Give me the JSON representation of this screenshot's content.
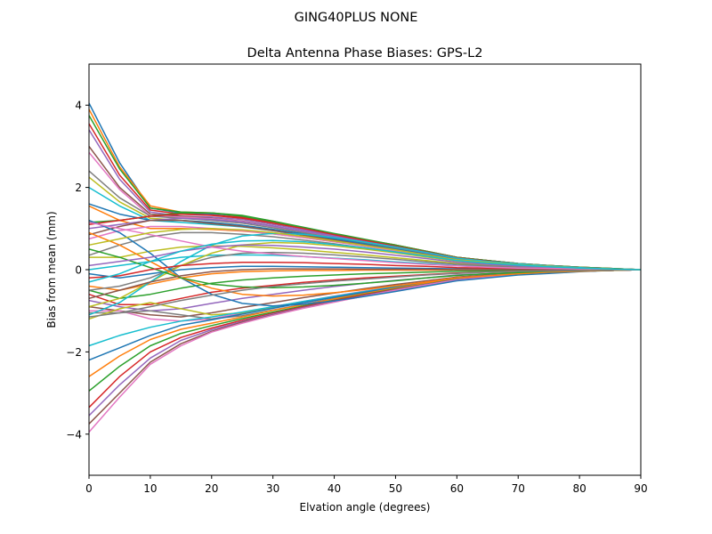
{
  "suptitle": "GING40PLUS      NONE",
  "chart_data": {
    "type": "line",
    "title": "Delta Antenna Phase Biases: GPS-L2",
    "xlabel": "Elvation angle (degrees)",
    "ylabel": "Bias from mean (mm)",
    "xlim": [
      0,
      90
    ],
    "ylim": [
      -5,
      5
    ],
    "xticks": [
      0,
      10,
      20,
      30,
      40,
      50,
      60,
      70,
      80,
      90
    ],
    "yticks": [
      -4,
      -2,
      0,
      2,
      4
    ],
    "grid": false,
    "legend": "none",
    "x": [
      0,
      5,
      10,
      15,
      20,
      25,
      30,
      35,
      40,
      45,
      50,
      55,
      60,
      65,
      70,
      75,
      80,
      85,
      90
    ],
    "series": [
      {
        "values": [
          4.05,
          2.6,
          1.5,
          1.38,
          1.36,
          1.3,
          1.15,
          1.0,
          0.85,
          0.72,
          0.6,
          0.45,
          0.3,
          0.22,
          0.15,
          0.1,
          0.06,
          0.03,
          0.0
        ]
      },
      {
        "values": [
          3.9,
          2.5,
          1.55,
          1.4,
          1.38,
          1.3,
          1.18,
          1.02,
          0.87,
          0.73,
          0.6,
          0.45,
          0.3,
          0.22,
          0.15,
          0.1,
          0.06,
          0.03,
          0.0
        ]
      },
      {
        "values": [
          3.75,
          2.45,
          1.5,
          1.4,
          1.38,
          1.32,
          1.18,
          1.03,
          0.88,
          0.74,
          0.6,
          0.45,
          0.3,
          0.22,
          0.15,
          0.1,
          0.06,
          0.03,
          0.0
        ]
      },
      {
        "values": [
          3.55,
          2.3,
          1.45,
          1.35,
          1.33,
          1.27,
          1.15,
          1.0,
          0.86,
          0.72,
          0.58,
          0.44,
          0.3,
          0.22,
          0.15,
          0.1,
          0.06,
          0.03,
          0.0
        ]
      },
      {
        "values": [
          3.4,
          2.2,
          1.4,
          1.3,
          1.28,
          1.22,
          1.1,
          0.97,
          0.83,
          0.7,
          0.56,
          0.42,
          0.28,
          0.21,
          0.14,
          0.09,
          0.05,
          0.02,
          0.0
        ]
      },
      {
        "values": [
          3.0,
          2.0,
          1.35,
          1.3,
          1.25,
          1.18,
          1.06,
          0.93,
          0.8,
          0.67,
          0.54,
          0.4,
          0.27,
          0.2,
          0.14,
          0.09,
          0.05,
          0.02,
          0.0
        ]
      },
      {
        "values": [
          2.85,
          1.95,
          1.3,
          1.28,
          1.24,
          1.17,
          1.05,
          0.92,
          0.79,
          0.66,
          0.53,
          0.4,
          0.27,
          0.2,
          0.14,
          0.09,
          0.05,
          0.02,
          0.0
        ]
      },
      {
        "values": [
          2.4,
          1.75,
          1.3,
          1.25,
          1.2,
          1.13,
          1.02,
          0.9,
          0.77,
          0.64,
          0.52,
          0.39,
          0.26,
          0.2,
          0.13,
          0.09,
          0.05,
          0.02,
          0.0
        ]
      },
      {
        "values": [
          2.25,
          1.65,
          1.25,
          1.2,
          1.15,
          1.08,
          0.98,
          0.87,
          0.75,
          0.63,
          0.5,
          0.38,
          0.25,
          0.19,
          0.13,
          0.08,
          0.05,
          0.02,
          0.0
        ]
      },
      {
        "values": [
          2.0,
          1.55,
          1.2,
          1.15,
          1.1,
          1.04,
          0.95,
          0.84,
          0.73,
          0.61,
          0.49,
          0.37,
          0.25,
          0.18,
          0.12,
          0.08,
          0.04,
          0.02,
          0.0
        ]
      },
      {
        "values": [
          1.6,
          1.35,
          1.2,
          1.2,
          1.15,
          1.08,
          0.98,
          0.87,
          0.75,
          0.63,
          0.5,
          0.38,
          0.25,
          0.19,
          0.13,
          0.08,
          0.05,
          0.02,
          0.0
        ]
      },
      {
        "values": [
          1.55,
          1.2,
          1.0,
          1.0,
          0.98,
          0.94,
          0.87,
          0.78,
          0.68,
          0.58,
          0.47,
          0.36,
          0.24,
          0.18,
          0.12,
          0.08,
          0.04,
          0.02,
          0.0
        ]
      },
      {
        "values": [
          1.15,
          1.2,
          1.3,
          1.38,
          1.38,
          1.3,
          1.17,
          1.02,
          0.87,
          0.72,
          0.58,
          0.44,
          0.3,
          0.22,
          0.15,
          0.1,
          0.06,
          0.03,
          0.0
        ]
      },
      {
        "values": [
          1.1,
          1.2,
          1.3,
          1.35,
          1.32,
          1.25,
          1.13,
          1.0,
          0.85,
          0.71,
          0.57,
          0.43,
          0.29,
          0.21,
          0.14,
          0.09,
          0.05,
          0.02,
          0.0
        ]
      },
      {
        "values": [
          1.0,
          1.1,
          1.2,
          1.25,
          1.22,
          1.16,
          1.06,
          0.94,
          0.81,
          0.68,
          0.55,
          0.41,
          0.28,
          0.2,
          0.14,
          0.09,
          0.05,
          0.02,
          0.0
        ]
      },
      {
        "values": [
          0.85,
          1.05,
          1.2,
          1.2,
          1.12,
          1.05,
          0.95,
          0.84,
          0.72,
          0.6,
          0.48,
          0.36,
          0.24,
          0.18,
          0.12,
          0.08,
          0.04,
          0.02,
          0.0
        ]
      },
      {
        "values": [
          0.75,
          0.95,
          1.05,
          1.05,
          1.0,
          0.95,
          0.87,
          0.78,
          0.68,
          0.57,
          0.46,
          0.35,
          0.23,
          0.17,
          0.12,
          0.08,
          0.04,
          0.02,
          0.0
        ]
      },
      {
        "values": [
          0.35,
          0.6,
          0.8,
          0.9,
          0.9,
          0.86,
          0.8,
          0.72,
          0.63,
          0.53,
          0.43,
          0.32,
          0.22,
          0.16,
          0.11,
          0.07,
          0.04,
          0.02,
          0.0
        ]
      },
      {
        "values": [
          0.3,
          0.3,
          0.45,
          0.55,
          0.58,
          0.57,
          0.53,
          0.48,
          0.42,
          0.36,
          0.29,
          0.22,
          0.15,
          0.11,
          0.08,
          0.05,
          0.03,
          0.01,
          0.0
        ]
      },
      {
        "values": [
          0.0,
          0.1,
          0.2,
          0.3,
          0.35,
          0.36,
          0.35,
          0.32,
          0.28,
          0.24,
          0.19,
          0.15,
          0.1,
          0.08,
          0.05,
          0.03,
          0.02,
          0.01,
          0.0
        ]
      },
      {
        "values": [
          -0.1,
          -0.2,
          -0.1,
          0.0,
          0.05,
          0.08,
          0.08,
          0.07,
          0.06,
          0.05,
          0.04,
          0.03,
          0.02,
          0.01,
          0.01,
          0.0,
          0.0,
          0.0,
          0.0
        ]
      },
      {
        "values": [
          -0.4,
          -0.5,
          -0.35,
          -0.2,
          -0.1,
          -0.05,
          -0.03,
          -0.02,
          -0.02,
          -0.01,
          -0.01,
          -0.01,
          0.0,
          0.0,
          0.0,
          0.0,
          0.0,
          0.0,
          0.0
        ]
      },
      {
        "values": [
          -0.5,
          -0.7,
          -0.6,
          -0.45,
          -0.33,
          -0.25,
          -0.2,
          -0.16,
          -0.13,
          -0.1,
          -0.08,
          -0.06,
          -0.04,
          -0.03,
          -0.02,
          -0.01,
          -0.01,
          0.0,
          0.0
        ]
      },
      {
        "values": [
          -0.6,
          -0.85,
          -0.85,
          -0.7,
          -0.55,
          -0.45,
          -0.38,
          -0.31,
          -0.25,
          -0.2,
          -0.16,
          -0.12,
          -0.08,
          -0.06,
          -0.04,
          -0.03,
          -0.02,
          -0.01,
          0.0
        ]
      },
      {
        "values": [
          -0.75,
          -0.9,
          -1.0,
          -0.95,
          -0.82,
          -0.7,
          -0.6,
          -0.5,
          -0.41,
          -0.33,
          -0.26,
          -0.2,
          -0.13,
          -0.1,
          -0.07,
          -0.04,
          -0.02,
          -0.01,
          0.0
        ]
      },
      {
        "values": [
          -0.9,
          -1.0,
          -1.1,
          -1.15,
          -1.05,
          -0.92,
          -0.8,
          -0.68,
          -0.57,
          -0.46,
          -0.36,
          -0.27,
          -0.18,
          -0.13,
          -0.09,
          -0.06,
          -0.03,
          -0.01,
          0.0
        ]
      },
      {
        "values": [
          -1.0,
          -1.0,
          -1.2,
          -1.25,
          -1.2,
          -1.05,
          -0.9,
          -0.77,
          -0.64,
          -0.52,
          -0.41,
          -0.3,
          -0.2,
          -0.15,
          -0.1,
          -0.06,
          -0.04,
          -0.02,
          0.0
        ]
      },
      {
        "values": [
          -1.05,
          -1.05,
          -1.0,
          -1.1,
          -1.2,
          -1.12,
          -0.98,
          -0.84,
          -0.7,
          -0.57,
          -0.45,
          -0.33,
          -0.22,
          -0.16,
          -0.11,
          -0.07,
          -0.04,
          -0.02,
          0.0
        ]
      },
      {
        "values": [
          -1.2,
          -0.95,
          -0.8,
          -0.95,
          -1.1,
          -1.05,
          -0.92,
          -0.79,
          -0.66,
          -0.54,
          -0.42,
          -0.31,
          -0.21,
          -0.15,
          -0.1,
          -0.07,
          -0.04,
          -0.02,
          0.0
        ]
      },
      {
        "values": [
          -1.85,
          -1.6,
          -1.4,
          -1.25,
          -1.15,
          -1.03,
          -0.9,
          -0.77,
          -0.65,
          -0.53,
          -0.42,
          -0.31,
          -0.2,
          -0.15,
          -0.1,
          -0.06,
          -0.04,
          -0.02,
          0.0
        ]
      },
      {
        "values": [
          -2.2,
          -1.9,
          -1.6,
          -1.35,
          -1.22,
          -1.08,
          -0.94,
          -0.8,
          -0.67,
          -0.55,
          -0.43,
          -0.32,
          -0.21,
          -0.15,
          -0.1,
          -0.07,
          -0.04,
          -0.02,
          0.0
        ]
      },
      {
        "values": [
          -2.6,
          -2.1,
          -1.7,
          -1.45,
          -1.3,
          -1.15,
          -0.99,
          -0.85,
          -0.71,
          -0.58,
          -0.45,
          -0.33,
          -0.22,
          -0.16,
          -0.11,
          -0.07,
          -0.04,
          -0.02,
          0.0
        ]
      },
      {
        "values": [
          -2.95,
          -2.35,
          -1.85,
          -1.55,
          -1.36,
          -1.19,
          -1.03,
          -0.88,
          -0.74,
          -0.6,
          -0.47,
          -0.35,
          -0.23,
          -0.17,
          -0.11,
          -0.07,
          -0.04,
          -0.02,
          0.0
        ]
      },
      {
        "values": [
          -3.35,
          -2.6,
          -2.0,
          -1.65,
          -1.42,
          -1.23,
          -1.06,
          -0.9,
          -0.75,
          -0.61,
          -0.48,
          -0.36,
          -0.24,
          -0.17,
          -0.12,
          -0.07,
          -0.04,
          -0.02,
          0.0
        ]
      },
      {
        "values": [
          -3.55,
          -2.8,
          -2.15,
          -1.72,
          -1.46,
          -1.26,
          -1.08,
          -0.92,
          -0.77,
          -0.63,
          -0.49,
          -0.36,
          -0.24,
          -0.18,
          -0.12,
          -0.08,
          -0.04,
          -0.02,
          0.0
        ]
      },
      {
        "values": [
          -3.75,
          -3.0,
          -2.25,
          -1.8,
          -1.5,
          -1.28,
          -1.1,
          -0.93,
          -0.78,
          -0.64,
          -0.5,
          -0.37,
          -0.25,
          -0.18,
          -0.12,
          -0.08,
          -0.04,
          -0.02,
          0.0
        ]
      },
      {
        "values": [
          -3.95,
          -3.1,
          -2.3,
          -1.85,
          -1.52,
          -1.3,
          -1.11,
          -0.94,
          -0.79,
          -0.64,
          -0.5,
          -0.37,
          -0.25,
          -0.18,
          -0.12,
          -0.08,
          -0.04,
          -0.02,
          0.0
        ]
      },
      {
        "values": [
          -0.5,
          -0.4,
          -0.2,
          0.1,
          0.3,
          0.4,
          0.42,
          0.4,
          0.36,
          0.31,
          0.25,
          0.19,
          0.13,
          0.09,
          0.06,
          0.04,
          0.02,
          0.01,
          0.0
        ]
      },
      {
        "values": [
          -0.9,
          -0.7,
          -0.3,
          0.1,
          0.4,
          0.6,
          0.66,
          0.64,
          0.58,
          0.5,
          0.41,
          0.31,
          0.21,
          0.15,
          0.1,
          0.06,
          0.04,
          0.02,
          0.0
        ]
      },
      {
        "values": [
          -1.1,
          -0.8,
          -0.3,
          0.2,
          0.6,
          0.82,
          0.88,
          0.86,
          0.78,
          0.67,
          0.55,
          0.42,
          0.28,
          0.2,
          0.14,
          0.09,
          0.05,
          0.02,
          0.0
        ]
      },
      {
        "values": [
          1.2,
          0.9,
          0.4,
          -0.2,
          -0.6,
          -0.82,
          -0.88,
          -0.84,
          -0.76,
          -0.65,
          -0.53,
          -0.4,
          -0.27,
          -0.2,
          -0.13,
          -0.09,
          -0.05,
          -0.02,
          0.0
        ]
      },
      {
        "values": [
          0.9,
          0.6,
          0.2,
          -0.2,
          -0.45,
          -0.6,
          -0.64,
          -0.62,
          -0.56,
          -0.48,
          -0.39,
          -0.3,
          -0.2,
          -0.15,
          -0.1,
          -0.06,
          -0.04,
          -0.02,
          0.0
        ]
      },
      {
        "values": [
          0.5,
          0.3,
          0.05,
          -0.2,
          -0.35,
          -0.42,
          -0.44,
          -0.42,
          -0.38,
          -0.33,
          -0.27,
          -0.2,
          -0.14,
          -0.1,
          -0.07,
          -0.04,
          -0.02,
          -0.01,
          0.0
        ]
      },
      {
        "values": [
          -0.2,
          -0.15,
          0.0,
          0.1,
          0.15,
          0.18,
          0.18,
          0.17,
          0.15,
          0.13,
          0.1,
          0.08,
          0.05,
          0.04,
          0.03,
          0.02,
          0.01,
          0.0,
          0.0
        ]
      },
      {
        "values": [
          0.1,
          0.2,
          0.3,
          0.45,
          0.55,
          0.6,
          0.59,
          0.55,
          0.5,
          0.43,
          0.35,
          0.27,
          0.18,
          0.13,
          0.09,
          0.06,
          0.03,
          0.01,
          0.0
        ]
      },
      {
        "values": [
          -0.7,
          -0.5,
          -0.3,
          -0.15,
          -0.05,
          0.0,
          0.02,
          0.02,
          0.02,
          0.01,
          0.01,
          0.01,
          0.0,
          0.0,
          0.0,
          0.0,
          0.0,
          0.0,
          0.0
        ]
      },
      {
        "values": [
          1.15,
          1.0,
          0.85,
          0.7,
          0.55,
          0.45,
          0.38,
          0.32,
          0.27,
          0.22,
          0.17,
          0.13,
          0.09,
          0.06,
          0.04,
          0.03,
          0.02,
          0.01,
          0.0
        ]
      },
      {
        "values": [
          -1.15,
          -1.05,
          -0.9,
          -0.75,
          -0.62,
          -0.5,
          -0.41,
          -0.34,
          -0.28,
          -0.23,
          -0.18,
          -0.13,
          -0.09,
          -0.06,
          -0.04,
          -0.03,
          -0.02,
          -0.01,
          0.0
        ]
      },
      {
        "values": [
          0.6,
          0.75,
          0.9,
          0.98,
          1.0,
          0.97,
          0.9,
          0.81,
          0.7,
          0.59,
          0.48,
          0.36,
          0.24,
          0.18,
          0.12,
          0.08,
          0.04,
          0.02,
          0.0
        ]
      },
      {
        "values": [
          -0.3,
          -0.1,
          0.2,
          0.45,
          0.62,
          0.7,
          0.71,
          0.68,
          0.61,
          0.53,
          0.43,
          0.33,
          0.22,
          0.16,
          0.11,
          0.07,
          0.04,
          0.02,
          0.0
        ]
      }
    ],
    "colors": [
      "#1f77b4",
      "#ff7f0e",
      "#2ca02c",
      "#d62728",
      "#9467bd",
      "#8c564b",
      "#e377c2",
      "#7f7f7f",
      "#bcbd22",
      "#17becf"
    ]
  }
}
